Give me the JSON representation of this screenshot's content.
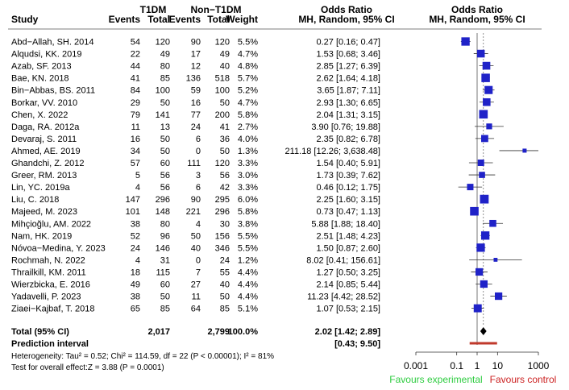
{
  "headers": {
    "group1": "T1DM",
    "group2": "Non−T1DM",
    "study": "Study",
    "events1": "Events",
    "total1": "Total",
    "events2": "Events",
    "total2": "Total",
    "weight": "Weight",
    "or_title": "Odds Ratio",
    "or_sub": "MH, Random, 95% CI",
    "plot_title": "Odds Ratio",
    "plot_sub": "MH, Random, 95% CI"
  },
  "summary": {
    "label": "Total (95% CI)",
    "total1": "2,017",
    "total2": "2,799",
    "weight": "100.0%",
    "ci_text": "2.02 [1.42; 2.89]",
    "or": 2.02,
    "lo": 1.42,
    "hi": 2.89
  },
  "prediction": {
    "label": "Prediction interval",
    "ci_text": "[0.43; 9.50]",
    "lo": 0.43,
    "hi": 9.5
  },
  "heterogeneity_text": "Heterogeneity: Tau² = 0.52; Chi² = 114.59, df = 22 (P < 0.00001); I² = 81%",
  "overall_effect_text": "Test for overall effect:Z = 3.88 (P = 0.0001)",
  "favours_left": "Favours experimental",
  "favours_right": "Favours control",
  "colors": {
    "marker": "#1f22c8",
    "diamond": "#000000",
    "prediction_bar": "#c0392b",
    "favours_left": "#2ecc40",
    "favours_right": "#cc2222",
    "ref_line": "#555555"
  },
  "chart_data": {
    "type": "forest",
    "x_scale": "log",
    "xlim": [
      0.001,
      1000
    ],
    "ticks": [
      {
        "value": 0.001,
        "label": "0.001"
      },
      {
        "value": 0.1,
        "label": "0.1"
      },
      {
        "value": 1,
        "label": "1"
      },
      {
        "value": 10,
        "label": "10"
      },
      {
        "value": 1000,
        "label": "1000"
      }
    ],
    "reference_value": 1,
    "studies": [
      {
        "name": "Abd−Allah, SH. 2014",
        "e1": "54",
        "n1": "120",
        "e2": "90",
        "n2": "120",
        "weight": "5.5%",
        "ci_text": "0.27 [0.16; 0.47]",
        "or": 0.27,
        "lo": 0.16,
        "hi": 0.47
      },
      {
        "name": "Alqudsi, KK. 2019",
        "e1": "22",
        "n1": "49",
        "e2": "17",
        "n2": "49",
        "weight": "4.7%",
        "ci_text": "1.53 [0.68; 3.46]",
        "or": 1.53,
        "lo": 0.68,
        "hi": 3.46
      },
      {
        "name": "Azab, SF. 2013",
        "e1": "44",
        "n1": "80",
        "e2": "12",
        "n2": "40",
        "weight": "4.8%",
        "ci_text": "2.85 [1.27; 6.39]",
        "or": 2.85,
        "lo": 1.27,
        "hi": 6.39
      },
      {
        "name": "Bae, KN. 2018",
        "e1": "41",
        "n1": "85",
        "e2": "136",
        "n2": "518",
        "weight": "5.7%",
        "ci_text": "2.62 [1.64; 4.18]",
        "or": 2.62,
        "lo": 1.64,
        "hi": 4.18
      },
      {
        "name": "Bin−Abbas, BS. 2011",
        "e1": "84",
        "n1": "100",
        "e2": "59",
        "n2": "100",
        "weight": "5.2%",
        "ci_text": "3.65 [1.87; 7.11]",
        "or": 3.65,
        "lo": 1.87,
        "hi": 7.11
      },
      {
        "name": "Borkar, VV. 2010",
        "e1": "29",
        "n1": "50",
        "e2": "16",
        "n2": "50",
        "weight": "4.7%",
        "ci_text": "2.93 [1.30; 6.65]",
        "or": 2.93,
        "lo": 1.3,
        "hi": 6.65
      },
      {
        "name": "Chen, X. 2022",
        "e1": "79",
        "n1": "141",
        "e2": "77",
        "n2": "200",
        "weight": "5.8%",
        "ci_text": "2.04 [1.31; 3.15]",
        "or": 2.04,
        "lo": 1.31,
        "hi": 3.15
      },
      {
        "name": "Daga, RA. 2012a",
        "e1": "11",
        "n1": "13",
        "e2": "24",
        "n2": "41",
        "weight": "2.7%",
        "ci_text": "3.90 [0.76; 19.88]",
        "or": 3.9,
        "lo": 0.76,
        "hi": 19.88
      },
      {
        "name": "Devaraj, S. 2011",
        "e1": "16",
        "n1": "50",
        "e2": "6",
        "n2": "36",
        "weight": "4.0%",
        "ci_text": "2.35 [0.82; 6.78]",
        "or": 2.35,
        "lo": 0.82,
        "hi": 6.78
      },
      {
        "name": "Ahmed, AE. 2019",
        "e1": "34",
        "n1": "50",
        "e2": "0",
        "n2": "50",
        "weight": "1.3%",
        "ci_text": "211.18 [12.26; 3,638.48]",
        "or": 211.18,
        "lo": 12.26,
        "hi": 3638.48
      },
      {
        "name": "Ghandchi, Z. 2012",
        "e1": "57",
        "n1": "60",
        "e2": "111",
        "n2": "120",
        "weight": "3.3%",
        "ci_text": "1.54 [0.40; 5.91]",
        "or": 1.54,
        "lo": 0.4,
        "hi": 5.91
      },
      {
        "name": "Greer, RM. 2013",
        "e1": "5",
        "n1": "56",
        "e2": "3",
        "n2": "56",
        "weight": "3.0%",
        "ci_text": "1.73 [0.39; 7.62]",
        "or": 1.73,
        "lo": 0.39,
        "hi": 7.62
      },
      {
        "name": "Lin, YC. 2019a",
        "e1": "4",
        "n1": "56",
        "e2": "6",
        "n2": "42",
        "weight": "3.3%",
        "ci_text": "0.46 [0.12; 1.75]",
        "or": 0.46,
        "lo": 0.12,
        "hi": 1.75
      },
      {
        "name": "Liu, C. 2018",
        "e1": "147",
        "n1": "296",
        "e2": "90",
        "n2": "295",
        "weight": "6.0%",
        "ci_text": "2.25 [1.60; 3.15]",
        "or": 2.25,
        "lo": 1.6,
        "hi": 3.15
      },
      {
        "name": "Majeed, M. 2023",
        "e1": "101",
        "n1": "148",
        "e2": "221",
        "n2": "296",
        "weight": "5.8%",
        "ci_text": "0.73 [0.47; 1.13]",
        "or": 0.73,
        "lo": 0.47,
        "hi": 1.13
      },
      {
        "name": "Mihçioğlu, AM. 2022",
        "e1": "38",
        "n1": "80",
        "e2": "4",
        "n2": "30",
        "weight": "3.8%",
        "ci_text": "5.88 [1.88; 18.40]",
        "or": 5.88,
        "lo": 1.88,
        "hi": 18.4
      },
      {
        "name": "Nam, HK. 2019",
        "e1": "52",
        "n1": "96",
        "e2": "50",
        "n2": "156",
        "weight": "5.5%",
        "ci_text": "2.51 [1.48; 4.23]",
        "or": 2.51,
        "lo": 1.48,
        "hi": 4.23
      },
      {
        "name": "Nóvoa−Medina, Y. 2023",
        "e1": "24",
        "n1": "146",
        "e2": "40",
        "n2": "346",
        "weight": "5.5%",
        "ci_text": "1.50 [0.87; 2.60]",
        "or": 1.5,
        "lo": 0.87,
        "hi": 2.6
      },
      {
        "name": "Rochmah, N. 2022",
        "e1": "4",
        "n1": "31",
        "e2": "0",
        "n2": "24",
        "weight": "1.2%",
        "ci_text": "8.02 [0.41; 156.61]",
        "or": 8.02,
        "lo": 0.41,
        "hi": 156.61
      },
      {
        "name": "Thrailkill, KM. 2011",
        "e1": "18",
        "n1": "115",
        "e2": "7",
        "n2": "55",
        "weight": "4.4%",
        "ci_text": "1.27 [0.50; 3.25]",
        "or": 1.27,
        "lo": 0.5,
        "hi": 3.25
      },
      {
        "name": "Wierzbicka, E. 2016",
        "e1": "49",
        "n1": "60",
        "e2": "27",
        "n2": "40",
        "weight": "4.4%",
        "ci_text": "2.14 [0.85; 5.44]",
        "or": 2.14,
        "lo": 0.85,
        "hi": 5.44
      },
      {
        "name": "Yadavelli, P. 2023",
        "e1": "38",
        "n1": "50",
        "e2": "11",
        "n2": "50",
        "weight": "4.4%",
        "ci_text": "11.23 [4.42; 28.52]",
        "or": 11.23,
        "lo": 4.42,
        "hi": 28.52
      },
      {
        "name": "Ziaei−Kajbaf, T. 2018",
        "e1": "65",
        "n1": "85",
        "e2": "64",
        "n2": "85",
        "weight": "5.1%",
        "ci_text": "1.07 [0.53; 2.15]",
        "or": 1.07,
        "lo": 0.53,
        "hi": 2.15
      }
    ]
  }
}
